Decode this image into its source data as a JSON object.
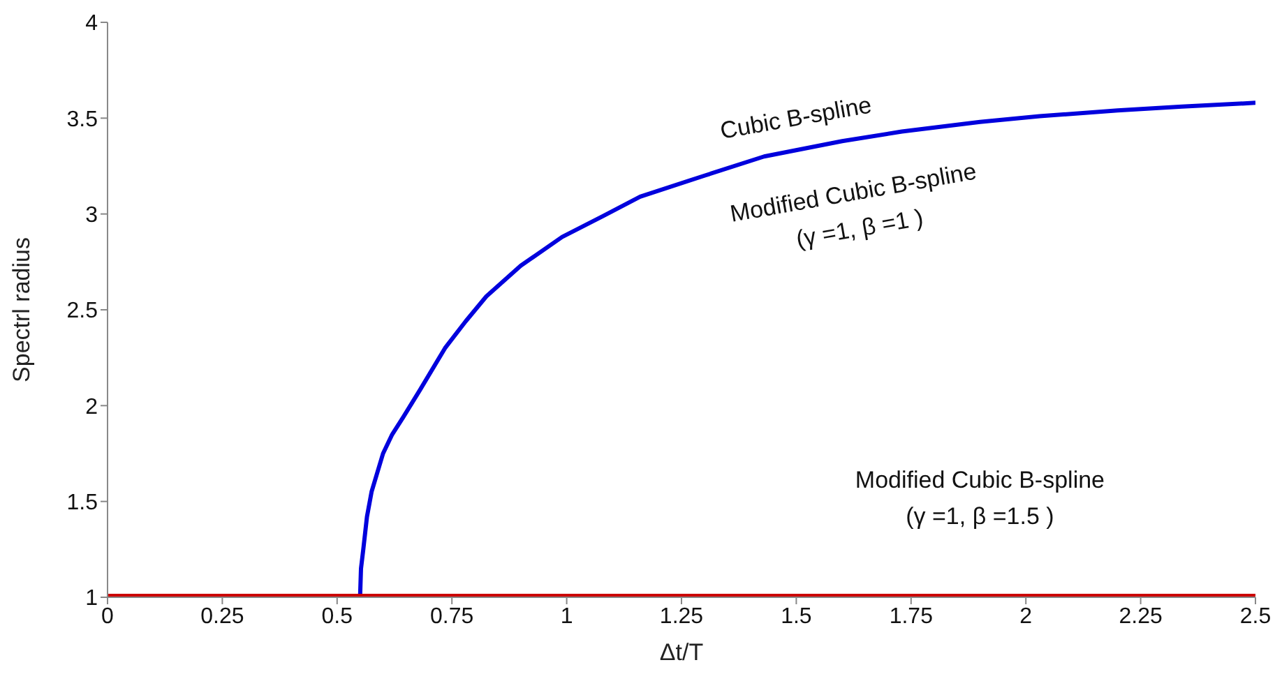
{
  "chart_data": {
    "type": "line",
    "xlabel": "Δt/T",
    "ylabel": "Spectrl radius",
    "xlim": [
      0,
      2.5
    ],
    "xticks": [
      0,
      0.25,
      0.5,
      0.75,
      1,
      1.25,
      1.5,
      1.75,
      2,
      2.25,
      2.5
    ],
    "ylim": [
      1,
      4
    ],
    "yticks": [
      1,
      1.5,
      2,
      2.5,
      3,
      3.5,
      4
    ],
    "grid": false,
    "legend": false,
    "marker": "none",
    "line_style": "solid",
    "series": [
      {
        "color": "#0000dd",
        "x": [
          0.55,
          0.552,
          0.557,
          0.565,
          0.575,
          0.6,
          0.62,
          0.644,
          0.68,
          0.735,
          0.78,
          0.825,
          0.9,
          0.99,
          1.08,
          1.16,
          1.3,
          1.43,
          1.6,
          1.73,
          1.9,
          2.03,
          2.2,
          2.34,
          2.5
        ],
        "values": [
          1.0,
          1.15,
          1.25,
          1.42,
          1.55,
          1.75,
          1.85,
          1.94,
          2.08,
          2.3,
          2.44,
          2.57,
          2.73,
          2.88,
          2.99,
          3.09,
          3.2,
          3.3,
          3.38,
          3.43,
          3.48,
          3.51,
          3.54,
          3.56,
          3.58
        ]
      },
      {
        "color": "#cc0000",
        "x": [
          0,
          2.5
        ],
        "values": [
          1,
          1
        ]
      }
    ],
    "annotations": [
      "Cubic B-spline",
      "Modified Cubic B-spline\n(γ =1, β =1 )",
      "Modified Cubic B-spline\n(γ =1, β =1.5 )"
    ]
  }
}
